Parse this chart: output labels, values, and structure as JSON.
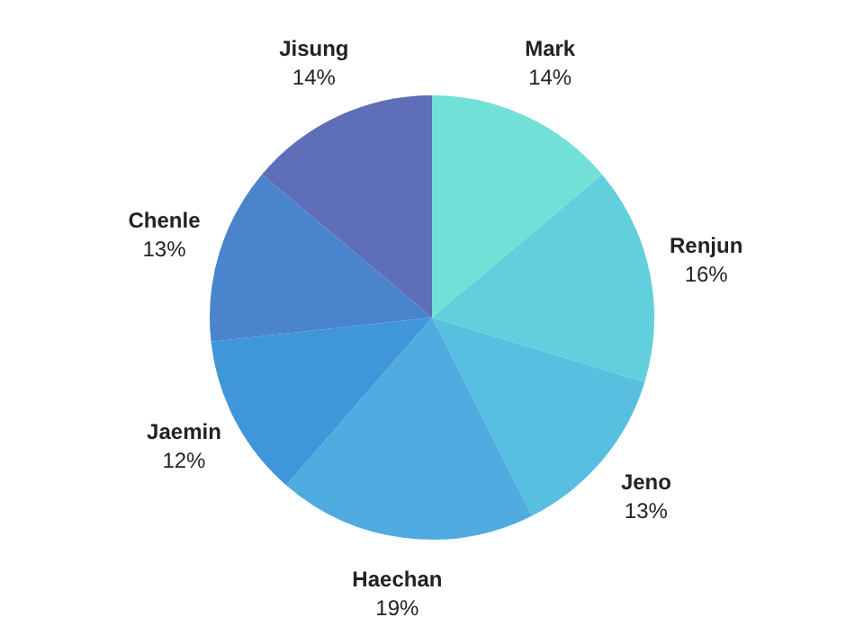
{
  "chart_data": {
    "type": "pie",
    "categories": [
      "Mark",
      "Renjun",
      "Jeno",
      "Haechan",
      "Jaemin",
      "Chenle",
      "Jisung"
    ],
    "values": [
      14,
      16,
      13,
      19,
      12,
      13,
      14
    ],
    "value_labels": [
      "14%",
      "16%",
      "13%",
      "19%",
      "12%",
      "13%",
      "14%"
    ],
    "colors": [
      "#72e0d6",
      "#62d0dc",
      "#58bfe0",
      "#4fabe0",
      "#3f96d8",
      "#4a84cc",
      "#5f6eb8"
    ],
    "legend": false
  }
}
